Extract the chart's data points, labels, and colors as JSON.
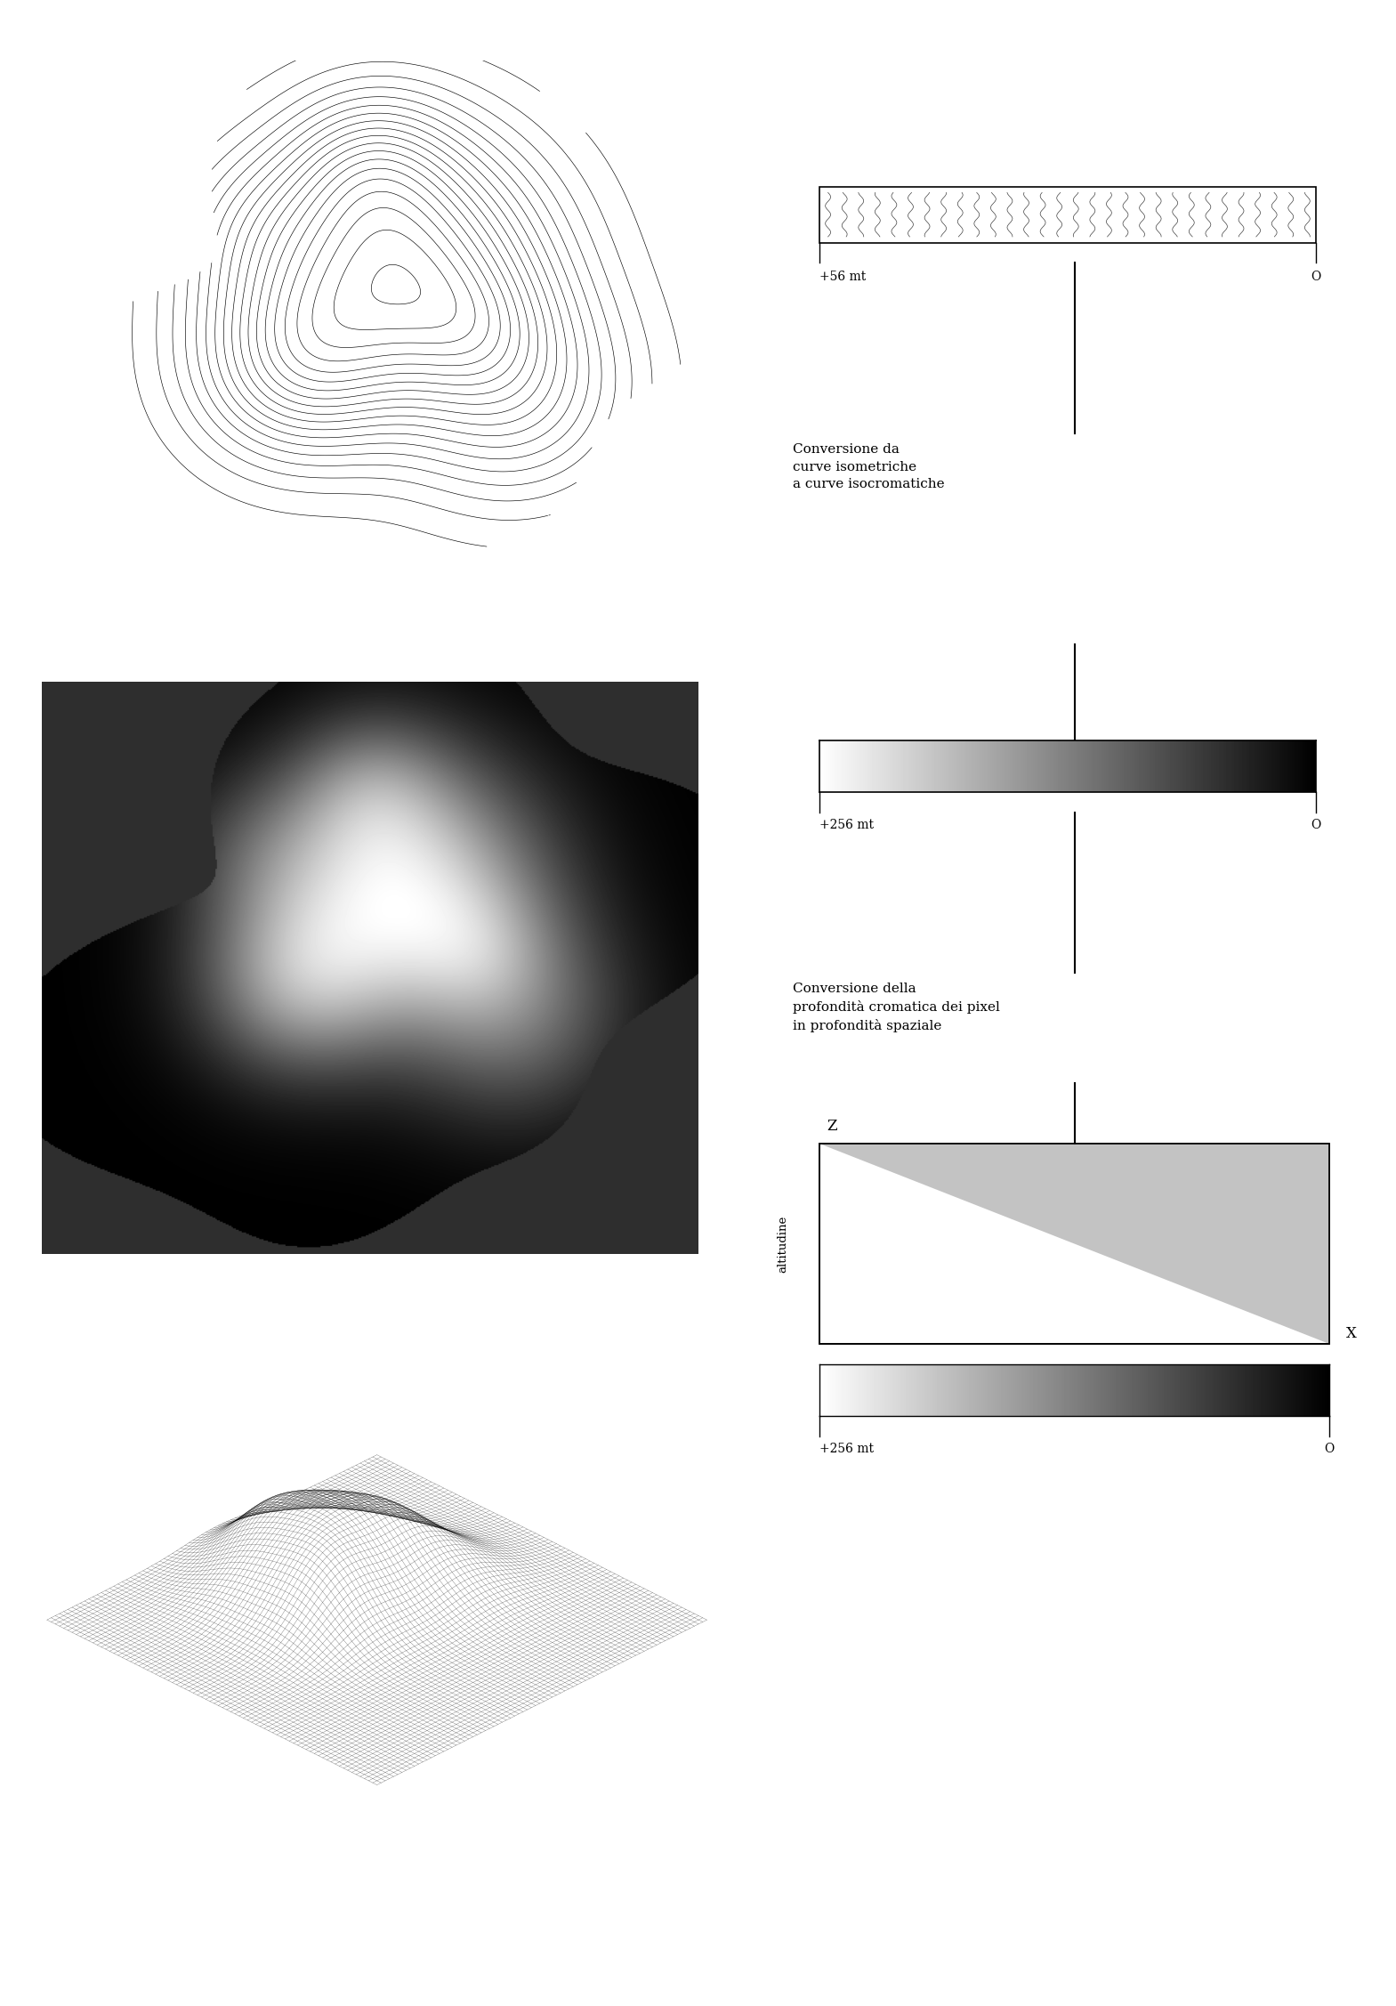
{
  "bg_color": "#ffffff",
  "label1": "+56 mt",
  "label1b": "O",
  "label2": "+256 mt",
  "label2b": "O",
  "label3": "+256 mt",
  "label3b": "O",
  "conversion_text1": "Conversione da\ncurve isometriche\na curve isocromatiche",
  "conversion_text2": "Conversione della\nprofondità cromatica dei pixel\nin profondità spaziale",
  "z_label": "Z",
  "x_label": "X",
  "altitudine_label": "altitudine",
  "font_size_label": 10,
  "font_size_text": 11,
  "line_width": 1.5
}
